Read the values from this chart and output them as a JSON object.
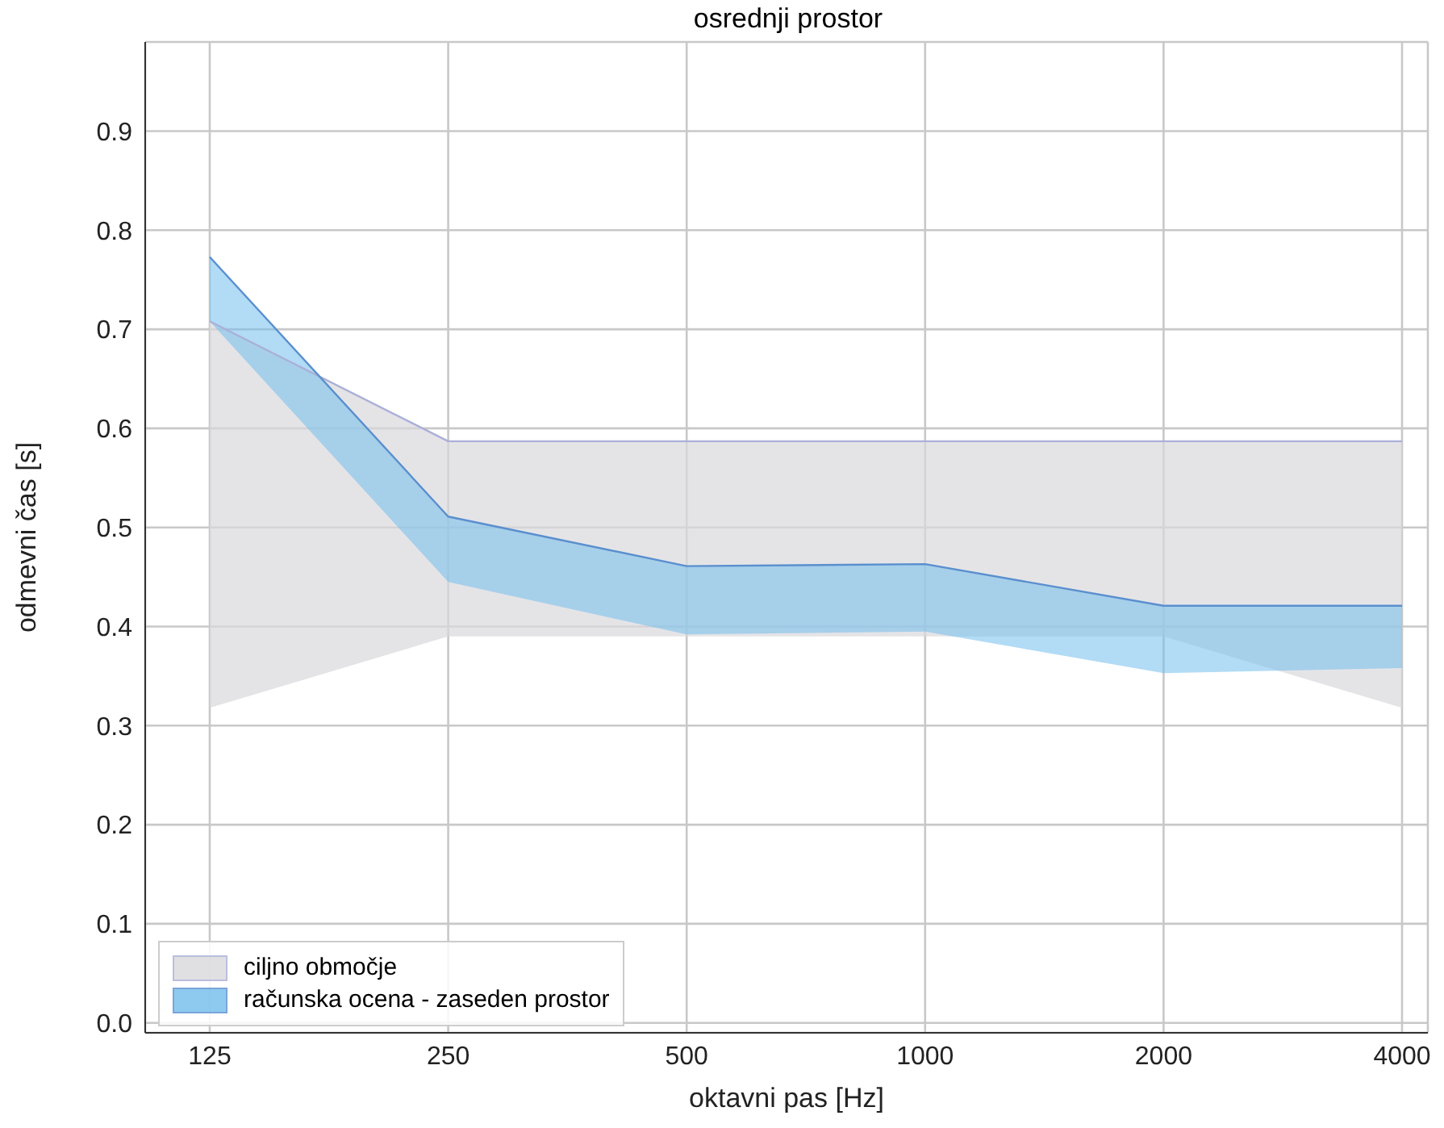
{
  "chart_data": {
    "type": "line",
    "title": "osrednji prostor",
    "xlabel": "oktavni pas [Hz]",
    "ylabel": "odmevni čas [s]",
    "categories": [
      "125",
      "250",
      "500",
      "1000",
      "2000",
      "4000"
    ],
    "series": [
      {
        "name": "ciljno območje",
        "color": "#aab0d8",
        "values": [
          0.708,
          0.587,
          0.587,
          0.587,
          0.587,
          0.587
        ],
        "lower": [
          0.318,
          0.39,
          0.39,
          0.39,
          0.39,
          0.318
        ],
        "upper": [
          0.708,
          0.587,
          0.587,
          0.587,
          0.587,
          0.587
        ]
      },
      {
        "name": "računska ocena - zaseden prostor",
        "color": "#5a8fce",
        "values": [
          0.773,
          0.511,
          0.461,
          0.463,
          0.421,
          0.421
        ],
        "lower": [
          0.708,
          0.445,
          0.392,
          0.395,
          0.353,
          0.358
        ],
        "upper": [
          0.773,
          0.511,
          0.461,
          0.463,
          0.421,
          0.421
        ]
      }
    ],
    "ylim": [
      -0.01,
      0.99
    ],
    "yticks": [
      {
        "value": 0,
        "label": "0.0"
      },
      0.1,
      0.2,
      0.3,
      0.4,
      0.5,
      0.6,
      0.7,
      0.8,
      0.9
    ],
    "grid": true,
    "legend": "bottom left",
    "marker": "none",
    "line_style": "solid"
  }
}
